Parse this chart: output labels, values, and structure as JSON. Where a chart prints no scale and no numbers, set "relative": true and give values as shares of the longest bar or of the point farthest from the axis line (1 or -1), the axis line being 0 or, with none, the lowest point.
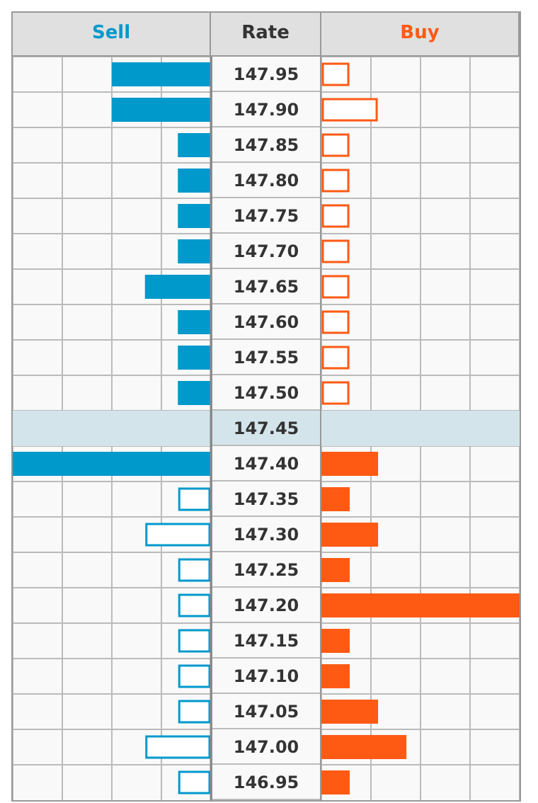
{
  "chart_data": [
    {
      "type": "bar",
      "orientation": "horizontal",
      "relative": true,
      "ylabel": "Rate",
      "legend": "top",
      "grid": true,
      "tick_labels": "y",
      "categories": [
        "147.95",
        "147.90",
        "147.85",
        "147.80",
        "147.75",
        "147.70",
        "147.65",
        "147.60",
        "147.55",
        "147.50",
        "147.45",
        "147.40",
        "147.35",
        "147.30",
        "147.25",
        "147.20",
        "147.15",
        "147.10",
        "147.05",
        "147.00",
        "146.95"
      ],
      "bands": [
        {
          "axis": "y",
          "from": "147.45",
          "to": "147.45",
          "color": "#d3e5ea"
        }
      ],
      "series": [
        {
          "name": "Sell",
          "color": "#0099cc",
          "values": [
            0.5,
            0.5,
            0.167,
            0.167,
            0.167,
            0.167,
            0.333,
            0.167,
            0.167,
            0.167,
            null,
            1,
            0.167,
            0.333,
            0.167,
            0.167,
            0.167,
            0.167,
            0.167,
            0.333,
            0.167
          ]
        }
      ]
    },
    {
      "type": "bar",
      "orientation": "horizontal",
      "relative": true,
      "legend": "top",
      "grid": true,
      "tick_labels": false,
      "categories": [
        "147.95",
        "147.90",
        "147.85",
        "147.80",
        "147.75",
        "147.70",
        "147.65",
        "147.60",
        "147.55",
        "147.50",
        "147.45",
        "147.40",
        "147.35",
        "147.30",
        "147.25",
        "147.20",
        "147.15",
        "147.10",
        "147.05",
        "147.00",
        "146.95"
      ],
      "bands": [
        {
          "axis": "y",
          "from": "147.45",
          "to": "147.45",
          "color": "#d3e5ea"
        }
      ],
      "series": [
        {
          "name": "Buy",
          "color": "#ff5a14",
          "values": [
            0.143,
            0.286,
            0.143,
            0.143,
            0.143,
            0.143,
            0.143,
            0.143,
            0.143,
            0.143,
            null,
            0.286,
            0.143,
            0.286,
            0.143,
            1,
            0.143,
            0.143,
            0.286,
            0.429,
            0.143
          ]
        }
      ]
    }
  ]
}
